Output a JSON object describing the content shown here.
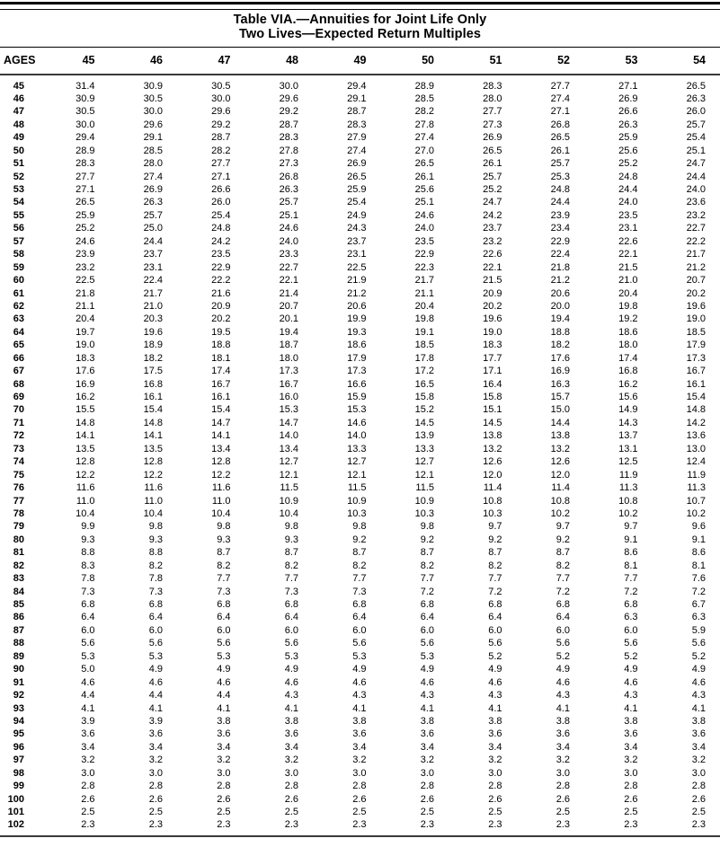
{
  "page": {
    "title_line1": "Table VIA.—Annuities for Joint Life Only",
    "title_line2": "Two Lives—Expected Return Multiples"
  },
  "table": {
    "header": [
      "AGES",
      "45",
      "46",
      "47",
      "48",
      "49",
      "50",
      "51",
      "52",
      "53",
      "54"
    ],
    "rows": [
      [
        "45",
        "31.4",
        "30.9",
        "30.5",
        "30.0",
        "29.4",
        "28.9",
        "28.3",
        "27.7",
        "27.1",
        "26.5"
      ],
      [
        "46",
        "30.9",
        "30.5",
        "30.0",
        "29.6",
        "29.1",
        "28.5",
        "28.0",
        "27.4",
        "26.9",
        "26.3"
      ],
      [
        "47",
        "30.5",
        "30.0",
        "29.6",
        "29.2",
        "28.7",
        "28.2",
        "27.7",
        "27.1",
        "26.6",
        "26.0"
      ],
      [
        "48",
        "30.0",
        "29.6",
        "29.2",
        "28.7",
        "28.3",
        "27.8",
        "27.3",
        "26.8",
        "26.3",
        "25.7"
      ],
      [
        "49",
        "29.4",
        "29.1",
        "28.7",
        "28.3",
        "27.9",
        "27.4",
        "26.9",
        "26.5",
        "25.9",
        "25.4"
      ],
      [
        "50",
        "28.9",
        "28.5",
        "28.2",
        "27.8",
        "27.4",
        "27.0",
        "26.5",
        "26.1",
        "25.6",
        "25.1"
      ],
      [
        "51",
        "28.3",
        "28.0",
        "27.7",
        "27.3",
        "26.9",
        "26.5",
        "26.1",
        "25.7",
        "25.2",
        "24.7"
      ],
      [
        "52",
        "27.7",
        "27.4",
        "27.1",
        "26.8",
        "26.5",
        "26.1",
        "25.7",
        "25.3",
        "24.8",
        "24.4"
      ],
      [
        "53",
        "27.1",
        "26.9",
        "26.6",
        "26.3",
        "25.9",
        "25.6",
        "25.2",
        "24.8",
        "24.4",
        "24.0"
      ],
      [
        "54",
        "26.5",
        "26.3",
        "26.0",
        "25.7",
        "25.4",
        "25.1",
        "24.7",
        "24.4",
        "24.0",
        "23.6"
      ],
      [
        "55",
        "25.9",
        "25.7",
        "25.4",
        "25.1",
        "24.9",
        "24.6",
        "24.2",
        "23.9",
        "23.5",
        "23.2"
      ],
      [
        "56",
        "25.2",
        "25.0",
        "24.8",
        "24.6",
        "24.3",
        "24.0",
        "23.7",
        "23.4",
        "23.1",
        "22.7"
      ],
      [
        "57",
        "24.6",
        "24.4",
        "24.2",
        "24.0",
        "23.7",
        "23.5",
        "23.2",
        "22.9",
        "22.6",
        "22.2"
      ],
      [
        "58",
        "23.9",
        "23.7",
        "23.5",
        "23.3",
        "23.1",
        "22.9",
        "22.6",
        "22.4",
        "22.1",
        "21.7"
      ],
      [
        "59",
        "23.2",
        "23.1",
        "22.9",
        "22.7",
        "22.5",
        "22.3",
        "22.1",
        "21.8",
        "21.5",
        "21.2"
      ],
      [
        "60",
        "22.5",
        "22.4",
        "22.2",
        "22.1",
        "21.9",
        "21.7",
        "21.5",
        "21.2",
        "21.0",
        "20.7"
      ],
      [
        "61",
        "21.8",
        "21.7",
        "21.6",
        "21.4",
        "21.2",
        "21.1",
        "20.9",
        "20.6",
        "20.4",
        "20.2"
      ],
      [
        "62",
        "21.1",
        "21.0",
        "20.9",
        "20.7",
        "20.6",
        "20.4",
        "20.2",
        "20.0",
        "19.8",
        "19.6"
      ],
      [
        "63",
        "20.4",
        "20.3",
        "20.2",
        "20.1",
        "19.9",
        "19.8",
        "19.6",
        "19.4",
        "19.2",
        "19.0"
      ],
      [
        "64",
        "19.7",
        "19.6",
        "19.5",
        "19.4",
        "19.3",
        "19.1",
        "19.0",
        "18.8",
        "18.6",
        "18.5"
      ],
      [
        "65",
        "19.0",
        "18.9",
        "18.8",
        "18.7",
        "18.6",
        "18.5",
        "18.3",
        "18.2",
        "18.0",
        "17.9"
      ],
      [
        "66",
        "18.3",
        "18.2",
        "18.1",
        "18.0",
        "17.9",
        "17.8",
        "17.7",
        "17.6",
        "17.4",
        "17.3"
      ],
      [
        "67",
        "17.6",
        "17.5",
        "17.4",
        "17.3",
        "17.3",
        "17.2",
        "17.1",
        "16.9",
        "16.8",
        "16.7"
      ],
      [
        "68",
        "16.9",
        "16.8",
        "16.7",
        "16.7",
        "16.6",
        "16.5",
        "16.4",
        "16.3",
        "16.2",
        "16.1"
      ],
      [
        "69",
        "16.2",
        "16.1",
        "16.1",
        "16.0",
        "15.9",
        "15.8",
        "15.8",
        "15.7",
        "15.6",
        "15.4"
      ],
      [
        "70",
        "15.5",
        "15.4",
        "15.4",
        "15.3",
        "15.3",
        "15.2",
        "15.1",
        "15.0",
        "14.9",
        "14.8"
      ],
      [
        "71",
        "14.8",
        "14.8",
        "14.7",
        "14.7",
        "14.6",
        "14.5",
        "14.5",
        "14.4",
        "14.3",
        "14.2"
      ],
      [
        "72",
        "14.1",
        "14.1",
        "14.1",
        "14.0",
        "14.0",
        "13.9",
        "13.8",
        "13.8",
        "13.7",
        "13.6"
      ],
      [
        "73",
        "13.5",
        "13.5",
        "13.4",
        "13.4",
        "13.3",
        "13.3",
        "13.2",
        "13.2",
        "13.1",
        "13.0"
      ],
      [
        "74",
        "12.8",
        "12.8",
        "12.8",
        "12.7",
        "12.7",
        "12.7",
        "12.6",
        "12.6",
        "12.5",
        "12.4"
      ],
      [
        "75",
        "12.2",
        "12.2",
        "12.2",
        "12.1",
        "12.1",
        "12.1",
        "12.0",
        "12.0",
        "11.9",
        "11.9"
      ],
      [
        "76",
        "11.6",
        "11.6",
        "11.6",
        "11.5",
        "11.5",
        "11.5",
        "11.4",
        "11.4",
        "11.3",
        "11.3"
      ],
      [
        "77",
        "11.0",
        "11.0",
        "11.0",
        "10.9",
        "10.9",
        "10.9",
        "10.8",
        "10.8",
        "10.8",
        "10.7"
      ],
      [
        "78",
        "10.4",
        "10.4",
        "10.4",
        "10.4",
        "10.3",
        "10.3",
        "10.3",
        "10.2",
        "10.2",
        "10.2"
      ],
      [
        "79",
        "9.9",
        "9.8",
        "9.8",
        "9.8",
        "9.8",
        "9.8",
        "9.7",
        "9.7",
        "9.7",
        "9.6"
      ],
      [
        "80",
        "9.3",
        "9.3",
        "9.3",
        "9.3",
        "9.2",
        "9.2",
        "9.2",
        "9.2",
        "9.1",
        "9.1"
      ],
      [
        "81",
        "8.8",
        "8.8",
        "8.7",
        "8.7",
        "8.7",
        "8.7",
        "8.7",
        "8.7",
        "8.6",
        "8.6"
      ],
      [
        "82",
        "8.3",
        "8.2",
        "8.2",
        "8.2",
        "8.2",
        "8.2",
        "8.2",
        "8.2",
        "8.1",
        "8.1"
      ],
      [
        "83",
        "7.8",
        "7.8",
        "7.7",
        "7.7",
        "7.7",
        "7.7",
        "7.7",
        "7.7",
        "7.7",
        "7.6"
      ],
      [
        "84",
        "7.3",
        "7.3",
        "7.3",
        "7.3",
        "7.3",
        "7.2",
        "7.2",
        "7.2",
        "7.2",
        "7.2"
      ],
      [
        "85",
        "6.8",
        "6.8",
        "6.8",
        "6.8",
        "6.8",
        "6.8",
        "6.8",
        "6.8",
        "6.8",
        "6.7"
      ],
      [
        "86",
        "6.4",
        "6.4",
        "6.4",
        "6.4",
        "6.4",
        "6.4",
        "6.4",
        "6.4",
        "6.3",
        "6.3"
      ],
      [
        "87",
        "6.0",
        "6.0",
        "6.0",
        "6.0",
        "6.0",
        "6.0",
        "6.0",
        "6.0",
        "6.0",
        "5.9"
      ],
      [
        "88",
        "5.6",
        "5.6",
        "5.6",
        "5.6",
        "5.6",
        "5.6",
        "5.6",
        "5.6",
        "5.6",
        "5.6"
      ],
      [
        "89",
        "5.3",
        "5.3",
        "5.3",
        "5.3",
        "5.3",
        "5.3",
        "5.2",
        "5.2",
        "5.2",
        "5.2"
      ],
      [
        "90",
        "5.0",
        "4.9",
        "4.9",
        "4.9",
        "4.9",
        "4.9",
        "4.9",
        "4.9",
        "4.9",
        "4.9"
      ],
      [
        "91",
        "4.6",
        "4.6",
        "4.6",
        "4.6",
        "4.6",
        "4.6",
        "4.6",
        "4.6",
        "4.6",
        "4.6"
      ],
      [
        "92",
        "4.4",
        "4.4",
        "4.4",
        "4.3",
        "4.3",
        "4.3",
        "4.3",
        "4.3",
        "4.3",
        "4.3"
      ],
      [
        "93",
        "4.1",
        "4.1",
        "4.1",
        "4.1",
        "4.1",
        "4.1",
        "4.1",
        "4.1",
        "4.1",
        "4.1"
      ],
      [
        "94",
        "3.9",
        "3.9",
        "3.8",
        "3.8",
        "3.8",
        "3.8",
        "3.8",
        "3.8",
        "3.8",
        "3.8"
      ],
      [
        "95",
        "3.6",
        "3.6",
        "3.6",
        "3.6",
        "3.6",
        "3.6",
        "3.6",
        "3.6",
        "3.6",
        "3.6"
      ],
      [
        "96",
        "3.4",
        "3.4",
        "3.4",
        "3.4",
        "3.4",
        "3.4",
        "3.4",
        "3.4",
        "3.4",
        "3.4"
      ],
      [
        "97",
        "3.2",
        "3.2",
        "3.2",
        "3.2",
        "3.2",
        "3.2",
        "3.2",
        "3.2",
        "3.2",
        "3.2"
      ],
      [
        "98",
        "3.0",
        "3.0",
        "3.0",
        "3.0",
        "3.0",
        "3.0",
        "3.0",
        "3.0",
        "3.0",
        "3.0"
      ],
      [
        "99",
        "2.8",
        "2.8",
        "2.8",
        "2.8",
        "2.8",
        "2.8",
        "2.8",
        "2.8",
        "2.8",
        "2.8"
      ],
      [
        "100",
        "2.6",
        "2.6",
        "2.6",
        "2.6",
        "2.6",
        "2.6",
        "2.6",
        "2.6",
        "2.6",
        "2.6"
      ],
      [
        "101",
        "2.5",
        "2.5",
        "2.5",
        "2.5",
        "2.5",
        "2.5",
        "2.5",
        "2.5",
        "2.5",
        "2.5"
      ],
      [
        "102",
        "2.3",
        "2.3",
        "2.3",
        "2.3",
        "2.3",
        "2.3",
        "2.3",
        "2.3",
        "2.3",
        "2.3"
      ]
    ]
  }
}
